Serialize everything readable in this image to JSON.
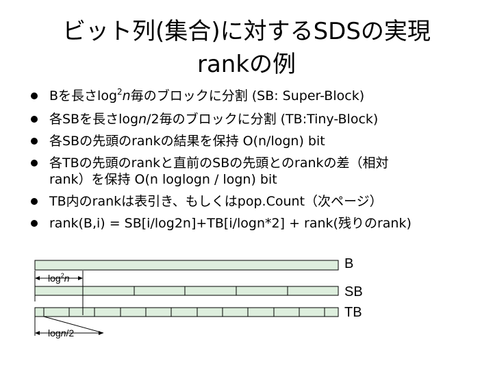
{
  "slide": {
    "title_line1": "ビット列(集合)に対するSDSの実現",
    "title_line2": "rankの例"
  },
  "bullets": [
    {
      "pre": "Bを長さlog",
      "sup": "2",
      "italic": "n",
      "post": "毎のブロックに分割 (SB: Super-Block)"
    },
    {
      "pre": "各SBを長さlog",
      "italic": "n",
      "post": "/2毎のブロックに分割 (TB:Tiny-Block)"
    },
    {
      "text": "各SBの先頭のrankの結果を保持 O(n/logn) bit"
    },
    {
      "line1": "各TBの先頭のrankと直前のSBの先頭とのrankの差（相対",
      "line2": "rank）を保持 O(n loglogn / logn) bit"
    },
    {
      "text": "TB内のrankは表引き、もしくはpop.Count（次ページ）"
    },
    {
      "text": "rank(B,i) = SB[i/log2n]+TB[i/logn*2] + rank(残りのrank)"
    }
  ],
  "diagram": {
    "label_b": "B",
    "label_sb": "SB",
    "label_tb": "TB",
    "sb_label_pre": "log",
    "sb_label_sup": "2",
    "sb_label_italic": "n",
    "tb_label_pre": "log",
    "tb_label_italic": "n",
    "tb_label_post": "/2",
    "fill_color": "#ddeedd"
  }
}
